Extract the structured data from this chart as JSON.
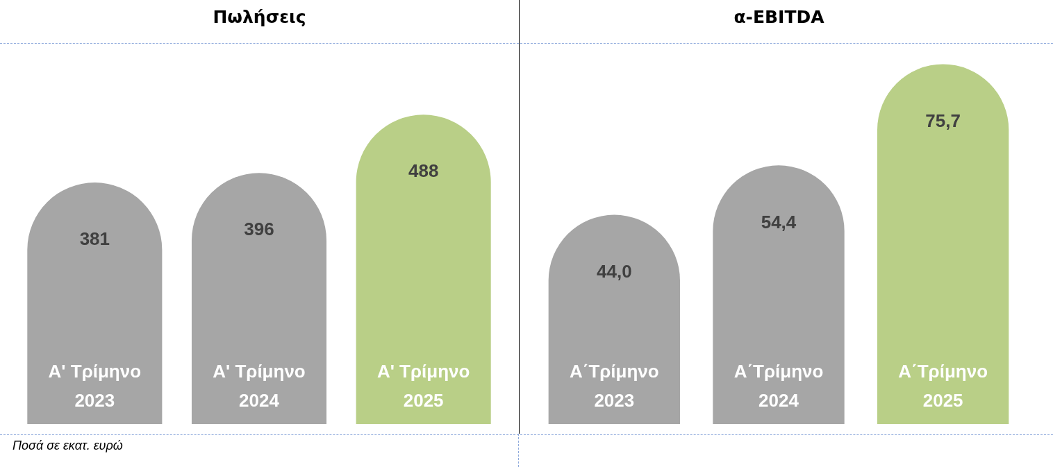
{
  "chart_data": [
    {
      "type": "bar",
      "title": "Πωλήσεις",
      "categories": [
        "Α' Τρίμηνο\n2023",
        "Α' Τρίμηνο\n2024",
        "Α' Τρίμηνο\n2025"
      ],
      "values": [
        381,
        396,
        488
      ],
      "colors": [
        "#a6a6a6",
        "#a6a6a6",
        "#b9cf87"
      ],
      "data_labels": true,
      "annotations": [
        "Ποσά σε εκατ. ευρώ"
      ]
    },
    {
      "type": "bar",
      "title": "α-EBITDA",
      "categories": [
        "Α΄Τρίμηνο\n2023",
        "Α΄Τρίμηνο\n2024",
        "Α΄Τρίμηνο\n2025"
      ],
      "values": [
        44.0,
        54.4,
        75.7
      ],
      "value_labels": [
        "44,0",
        "54,4",
        "75,7"
      ],
      "colors": [
        "#a6a6a6",
        "#a6a6a6",
        "#b9cf87"
      ]
    }
  ]
}
